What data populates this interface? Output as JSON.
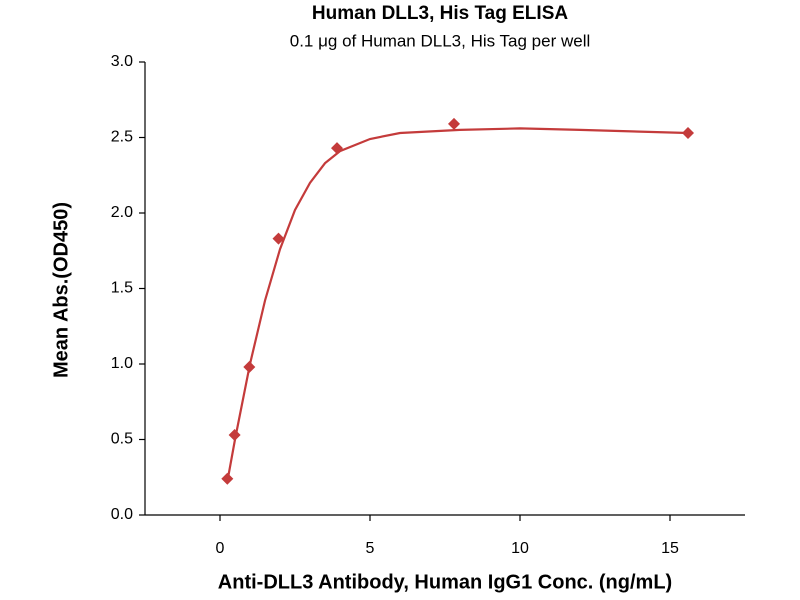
{
  "chart_data": {
    "type": "scatter",
    "title": "Human DLL3, His Tag ELISA",
    "subtitle": "0.1 μg of Human DLL3, His Tag per well",
    "x_label": "Anti-DLL3 Antibody, Human IgG1 Conc. (ng/mL)",
    "y_label": "Mean Abs.(OD450)",
    "color": "#c43b3b",
    "x": [
      0.244,
      0.488,
      0.977,
      1.95,
      3.9,
      7.8,
      15.6
    ],
    "values": [
      0.24,
      0.53,
      0.98,
      1.83,
      2.43,
      2.59,
      2.53
    ],
    "curve": {
      "x": [
        0.244,
        0.5,
        1,
        1.5,
        2,
        2.5,
        3,
        3.5,
        4,
        5,
        6,
        8,
        10,
        12,
        15.6
      ],
      "values": [
        0.22,
        0.5,
        1.0,
        1.42,
        1.76,
        2.02,
        2.2,
        2.33,
        2.41,
        2.49,
        2.53,
        2.55,
        2.56,
        2.55,
        2.53
      ]
    },
    "xlim": [
      -2.5,
      17.5
    ],
    "ylim": [
      0,
      3.0
    ],
    "xticks": [
      0,
      5,
      10,
      15
    ],
    "yticks": [
      {
        "value": 0,
        "label": "0.0"
      },
      0.5,
      {
        "value": 1,
        "label": "1.0"
      },
      1.5,
      {
        "value": 2,
        "label": "2.0"
      },
      2.5,
      {
        "value": 3,
        "label": "3.0"
      }
    ]
  }
}
